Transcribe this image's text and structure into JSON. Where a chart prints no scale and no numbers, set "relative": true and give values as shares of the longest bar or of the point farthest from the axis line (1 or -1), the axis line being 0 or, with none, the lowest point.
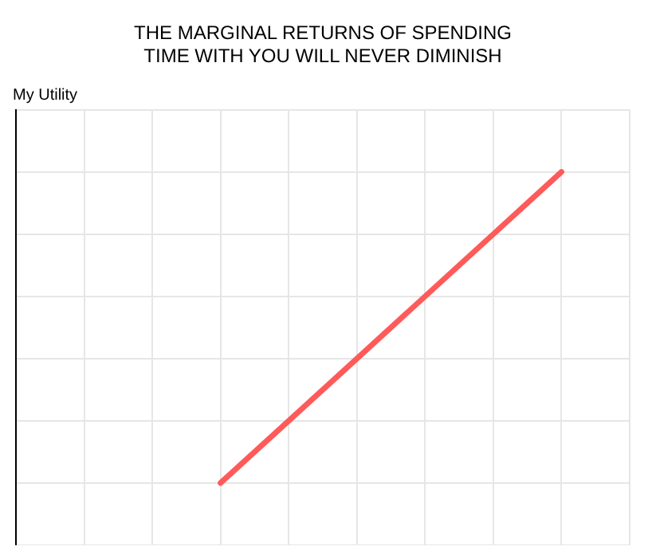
{
  "chart_data": {
    "type": "line",
    "title": "THE MARGINAL RETURNS OF SPENDING\nTIME WITH YOU WILL NEVER DIMINISH",
    "ylabel": "My Utility",
    "relative": true,
    "categories": [
      null,
      null,
      null,
      null,
      null,
      null,
      null,
      null,
      null,
      null
    ],
    "series": [
      {
        "color": "#ff5a5a",
        "values": [
          null,
          null,
          null,
          0,
          0.2,
          0.4,
          0.6,
          0.8,
          1.0,
          null
        ]
      }
    ],
    "grid": true,
    "legend": false,
    "marker": "none",
    "line_style": "solid",
    "tick_labels": false
  }
}
